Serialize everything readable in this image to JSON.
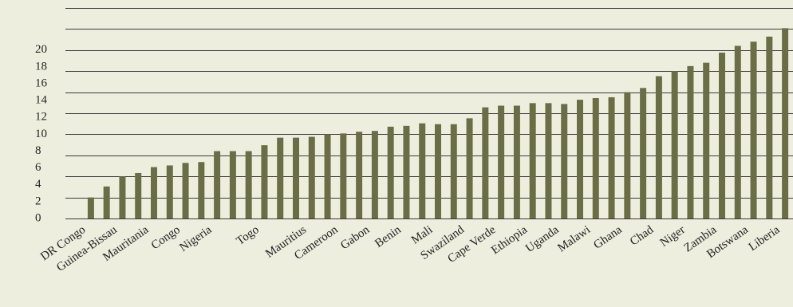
{
  "chart_data": {
    "type": "bar",
    "categories": [
      "DR Congo",
      null,
      "Guinea-Bissau",
      null,
      "Mauritania",
      null,
      "Congo",
      null,
      "Nigeria",
      null,
      null,
      "Togo",
      null,
      null,
      "Mauritius",
      null,
      "Cameroon",
      null,
      "Gabon",
      null,
      "Benin",
      null,
      "Mali",
      null,
      "Swaziland",
      null,
      "Cape Verde",
      null,
      "Ethiopia",
      null,
      "Uganda",
      null,
      "Malawi",
      null,
      "Ghana",
      null,
      "Chad",
      null,
      "Niger",
      null,
      "Zambia",
      null,
      "Botswana",
      null,
      "Liberia"
    ],
    "values": [
      2.5,
      3.8,
      5.0,
      5.4,
      6.1,
      6.3,
      6.6,
      6.7,
      8.0,
      8.0,
      8.0,
      8.7,
      9.6,
      9.6,
      9.7,
      10.0,
      10.1,
      10.3,
      10.4,
      10.9,
      11.0,
      11.3,
      11.2,
      11.2,
      11.9,
      13.2,
      13.4,
      13.4,
      13.7,
      13.7,
      13.6,
      14.1,
      14.3,
      14.4,
      15.0,
      15.5,
      16.9,
      17.5,
      18.1,
      18.5,
      19.7,
      20.5,
      21.0,
      21.6,
      22.6
    ],
    "color": "#6b6d47",
    "ylim": [
      0,
      25
    ],
    "yticks": [
      0,
      2,
      4,
      6,
      8,
      10,
      12,
      14,
      16,
      18,
      20
    ],
    "gridlines": [
      0,
      2.5,
      5,
      7.5,
      10,
      12.5,
      15,
      17.5,
      20,
      22.5,
      25
    ],
    "grid": true
  }
}
